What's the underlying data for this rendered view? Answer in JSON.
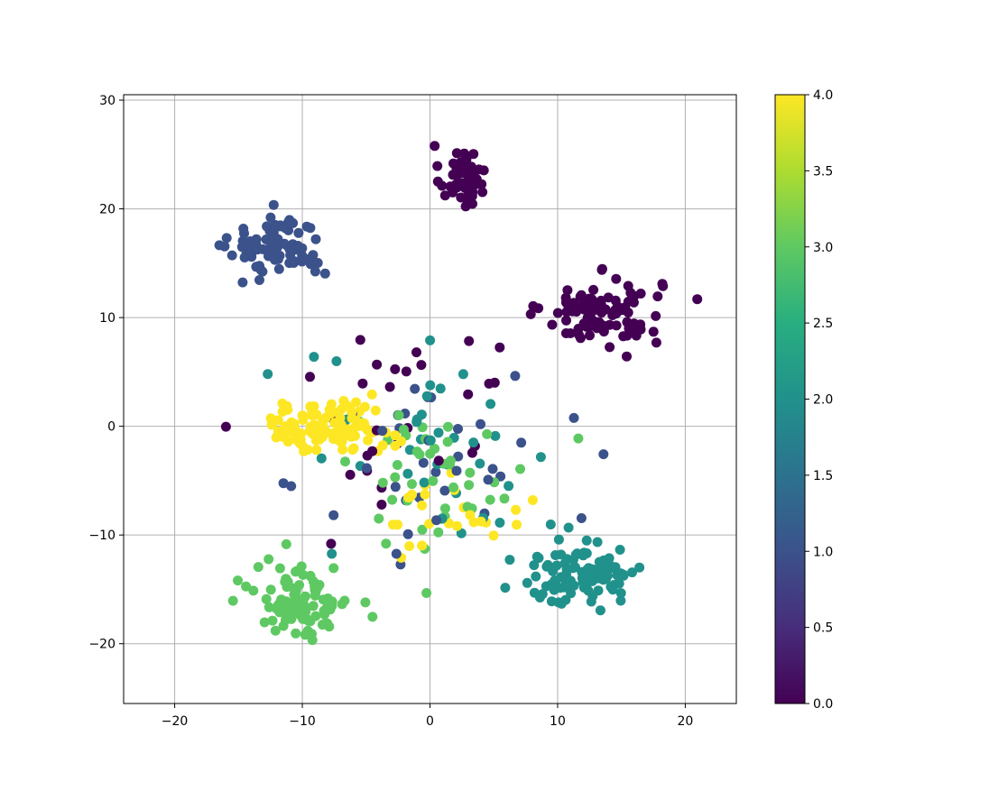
{
  "chart_data": {
    "type": "scatter",
    "title": "",
    "xlabel": "",
    "ylabel": "",
    "xlim": [
      -24,
      24
    ],
    "ylim": [
      -25.5,
      30.5
    ],
    "xticks": [
      -20,
      -10,
      0,
      10,
      20
    ],
    "yticks": [
      -20,
      -10,
      0,
      10,
      20,
      30
    ],
    "xtick_labels": [
      "−20",
      "−10",
      "0",
      "10",
      "20"
    ],
    "ytick_labels": [
      "−20",
      "−10",
      "0",
      "10",
      "20",
      "30"
    ],
    "grid": true,
    "colormap": "viridis",
    "colorbar": {
      "range": [
        0.0,
        4.0
      ],
      "ticks": [
        0.0,
        0.5,
        1.0,
        1.5,
        2.0,
        2.5,
        3.0,
        3.5,
        4.0
      ],
      "tick_labels": [
        "0.0",
        "0.5",
        "1.0",
        "1.5",
        "2.0",
        "2.5",
        "3.0",
        "3.5",
        "4.0"
      ]
    },
    "class_colors": [
      "#440154",
      "#3b528b",
      "#21918c",
      "#5ec962",
      "#fde725"
    ],
    "clusters": [
      {
        "class": 0,
        "center": [
          2.5,
          23.0
        ],
        "spread": [
          1.6,
          2.6
        ],
        "count": 55
      },
      {
        "class": 0,
        "center": [
          13.5,
          10.5
        ],
        "spread": [
          4.2,
          2.8
        ],
        "count": 95
      },
      {
        "class": 0,
        "center": [
          -2.0,
          2.0
        ],
        "spread": [
          9.0,
          9.0
        ],
        "count": 30
      },
      {
        "class": 1,
        "center": [
          -12.0,
          16.5
        ],
        "spread": [
          3.3,
          2.6
        ],
        "count": 90
      },
      {
        "class": 1,
        "center": [
          1.0,
          -4.0
        ],
        "spread": [
          9.0,
          8.0
        ],
        "count": 35
      },
      {
        "class": 2,
        "center": [
          12.0,
          -13.5
        ],
        "spread": [
          4.3,
          2.9
        ],
        "count": 105
      },
      {
        "class": 2,
        "center": [
          0.0,
          -3.0
        ],
        "spread": [
          9.0,
          9.0
        ],
        "count": 35
      },
      {
        "class": 3,
        "center": [
          -10.0,
          -16.0
        ],
        "spread": [
          3.4,
          3.1
        ],
        "count": 100
      },
      {
        "class": 3,
        "center": [
          0.5,
          -4.5
        ],
        "spread": [
          7.0,
          6.0
        ],
        "count": 45
      },
      {
        "class": 4,
        "center": [
          -8.0,
          0.0
        ],
        "spread": [
          4.5,
          2.1
        ],
        "count": 110
      },
      {
        "class": 4,
        "center": [
          2.0,
          -8.0
        ],
        "spread": [
          5.0,
          3.0
        ],
        "count": 25
      }
    ]
  }
}
